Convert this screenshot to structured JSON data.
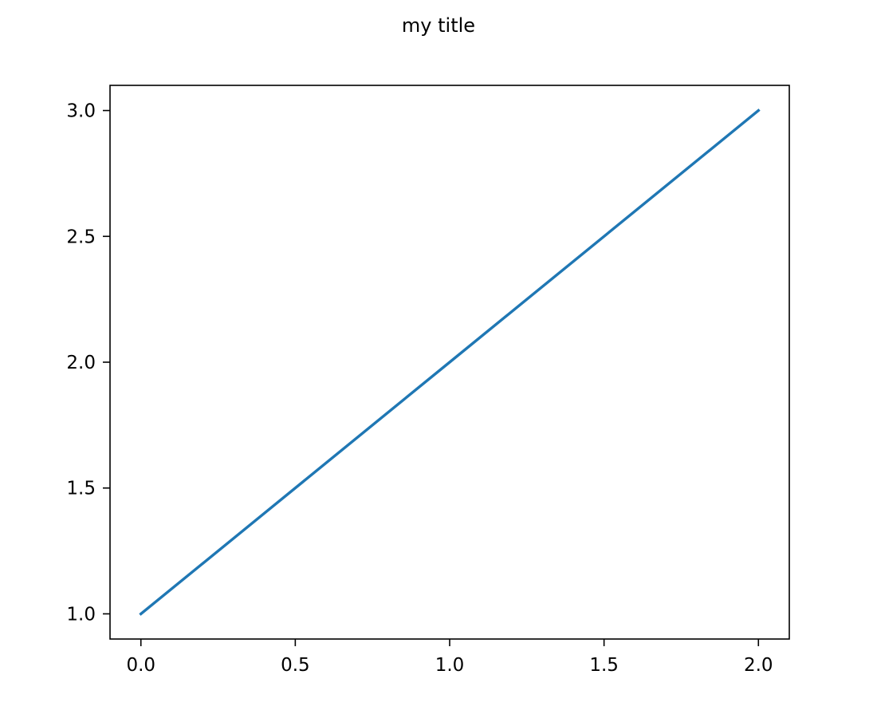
{
  "chart_data": {
    "type": "line",
    "title": "my title",
    "xlabel": "",
    "ylabel": "",
    "xlim": [
      -0.1,
      2.1
    ],
    "ylim": [
      0.9,
      3.1
    ],
    "x_ticks": [
      0.0,
      0.5,
      1.0,
      1.5,
      2.0
    ],
    "x_tick_labels": [
      "0.0",
      "0.5",
      "1.0",
      "1.5",
      "2.0"
    ],
    "y_ticks": [
      1.0,
      1.5,
      2.0,
      2.5,
      3.0
    ],
    "y_tick_labels": [
      "1.0",
      "1.5",
      "2.0",
      "2.5",
      "3.0"
    ],
    "grid": false,
    "legend": "none",
    "series": [
      {
        "x": [
          0,
          1,
          2
        ],
        "y": [
          1,
          2,
          3
        ],
        "color": "#1f77b4"
      }
    ]
  }
}
